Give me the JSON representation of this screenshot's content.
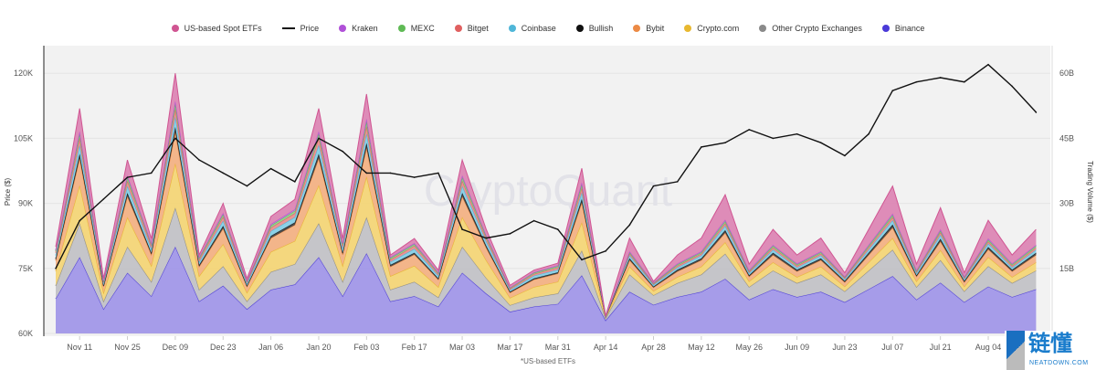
{
  "chart_data": {
    "type": "area",
    "stacked": true,
    "secondary_line": "Price",
    "legend_position": "top",
    "grid": true,
    "watermark": "CryptoQuant",
    "ylabel_left": "Price ($)",
    "ylabel_right": "Trading Volume ($)",
    "footnote": "*US-based ETFs",
    "ylim_left": [
      60000,
      127000
    ],
    "ylim_right": [
      0,
      67000000000
    ],
    "yticks_left": [
      {
        "v": 60000,
        "label": "60K"
      },
      {
        "v": 75000,
        "label": "75K"
      },
      {
        "v": 90000,
        "label": "90K"
      },
      {
        "v": 105000,
        "label": "105K"
      },
      {
        "v": 120000,
        "label": "120K"
      }
    ],
    "yticks_right": [
      {
        "v": 15000000000,
        "label": "15B"
      },
      {
        "v": 30000000000,
        "label": "30B"
      },
      {
        "v": 45000000000,
        "label": "45B"
      },
      {
        "v": 60000000000,
        "label": "60B"
      }
    ],
    "xticks": [
      {
        "date": "2024-11-11",
        "label": "Nov 11"
      },
      {
        "date": "2024-11-25",
        "label": "Nov 25"
      },
      {
        "date": "2024-12-09",
        "label": "Dec 09"
      },
      {
        "date": "2024-12-23",
        "label": "Dec 23"
      },
      {
        "date": "2025-01-06",
        "label": "Jan 06"
      },
      {
        "date": "2025-01-20",
        "label": "Jan 20"
      },
      {
        "date": "2025-02-03",
        "label": "Feb 03"
      },
      {
        "date": "2025-02-17",
        "label": "Feb 17"
      },
      {
        "date": "2025-03-03",
        "label": "Mar 03"
      },
      {
        "date": "2025-03-17",
        "label": "Mar 17"
      },
      {
        "date": "2025-03-31",
        "label": "Mar 31"
      },
      {
        "date": "2025-04-14",
        "label": "Apr 14"
      },
      {
        "date": "2025-04-28",
        "label": "Apr 28"
      },
      {
        "date": "2025-05-12",
        "label": "May 12"
      },
      {
        "date": "2025-05-26",
        "label": "May 26"
      },
      {
        "date": "2025-06-09",
        "label": "Jun 09"
      },
      {
        "date": "2025-06-23",
        "label": "Jun 23"
      },
      {
        "date": "2025-07-07",
        "label": "Jul 07"
      },
      {
        "date": "2025-07-21",
        "label": "Jul 21"
      },
      {
        "date": "2025-08-04",
        "label": "Aug 04"
      }
    ],
    "x": [
      "2024-11-04",
      "2024-11-11",
      "2024-11-18",
      "2024-11-25",
      "2024-12-02",
      "2024-12-09",
      "2024-12-16",
      "2024-12-23",
      "2024-12-30",
      "2025-01-06",
      "2025-01-13",
      "2025-01-20",
      "2025-01-27",
      "2025-02-03",
      "2025-02-10",
      "2025-02-17",
      "2025-02-24",
      "2025-03-03",
      "2025-03-10",
      "2025-03-17",
      "2025-03-24",
      "2025-03-31",
      "2025-04-07",
      "2025-04-14",
      "2025-04-21",
      "2025-04-28",
      "2025-05-05",
      "2025-05-12",
      "2025-05-19",
      "2025-05-26",
      "2025-06-02",
      "2025-06-09",
      "2025-06-16",
      "2025-06-23",
      "2025-06-30",
      "2025-07-07",
      "2025-07-14",
      "2025-07-21",
      "2025-07-28",
      "2025-08-04",
      "2025-08-11",
      "2025-08-18"
    ],
    "price": {
      "name": "Price",
      "unit": "USD",
      "color": "#111111",
      "values": [
        75000,
        86000,
        91000,
        96000,
        97000,
        105000,
        100000,
        97000,
        94000,
        98000,
        95000,
        105000,
        102000,
        97000,
        97000,
        96000,
        97000,
        84000,
        82000,
        83000,
        86000,
        84000,
        77000,
        79000,
        85000,
        94000,
        95000,
        103000,
        104000,
        107000,
        105000,
        106000,
        104000,
        101000,
        106000,
        116000,
        118000,
        119000,
        118000,
        122000,
        117000,
        111000
      ]
    },
    "volume_unit": "billion USD",
    "series": [
      {
        "name": "Binance",
        "color": "#4a3ad8",
        "fill": "#a197e8",
        "values": [
          8,
          17.6,
          5.6,
          14,
          8.6,
          20,
          7.4,
          11,
          5.6,
          10.1,
          11.3,
          17.6,
          8.6,
          18.5,
          7.4,
          8.6,
          6.2,
          14,
          9.2,
          5,
          6.2,
          6.8,
          13.4,
          3.0,
          9.6,
          6.6,
          8.4,
          9.6,
          12.6,
          7.8,
          10.2,
          8.4,
          9.6,
          7.2,
          10.2,
          13.2,
          7.8,
          11.7,
          7.2,
          10.8,
          8.4,
          10.2
        ]
      },
      {
        "name": "Other Crypto Exchanges",
        "color": "#8a8a8a",
        "fill": "#c2c2c6",
        "values": [
          3,
          7.8,
          1.8,
          6,
          3.3,
          9,
          2.7,
          4.5,
          1.8,
          4.1,
          4.7,
          7.8,
          3.3,
          8.3,
          2.7,
          3.3,
          2.1,
          6,
          3.6,
          1.5,
          2.1,
          2.4,
          5.7,
          0.5,
          4,
          2.2,
          3.2,
          4,
          5.8,
          2.9,
          4.3,
          3.2,
          4,
          2.5,
          4.3,
          6.1,
          2.9,
          5.2,
          2.5,
          4.7,
          3.2,
          4.3
        ]
      },
      {
        "name": "Crypto.com",
        "color": "#e8b830",
        "fill": "#f3d577",
        "values": [
          3.4,
          8.8,
          2,
          6.8,
          3.7,
          10.2,
          3.1,
          5.1,
          2,
          4.6,
          5.3,
          8.8,
          3.7,
          9.4,
          3.1,
          3.7,
          2.4,
          6.8,
          4.1,
          1.7,
          2.4,
          2.7,
          6.5,
          0.2,
          1.8,
          1,
          1.4,
          1.8,
          2.6,
          1.3,
          1.9,
          1.4,
          1.8,
          1.1,
          1.9,
          2.7,
          1.3,
          2.3,
          1.1,
          2.1,
          1.4,
          1.9
        ]
      },
      {
        "name": "Bybit",
        "color": "#ec8a45",
        "fill": "#f2b184",
        "values": [
          2.4,
          6.2,
          1.4,
          4.8,
          2.6,
          7.2,
          2.2,
          3.6,
          1.4,
          3.2,
          3.7,
          6.2,
          2.6,
          6.6,
          2.2,
          2.6,
          1.7,
          4.8,
          2.9,
          1.2,
          1.7,
          1.9,
          4.6,
          0.1,
          1.5,
          0.8,
          1.3,
          1.5,
          2.2,
          1.1,
          1.7,
          1.3,
          1.5,
          1,
          1.7,
          2.4,
          1.1,
          2,
          1,
          1.8,
          1.3,
          1.7
        ]
      },
      {
        "name": "Bullish",
        "color": "#111111",
        "fill": "#444444",
        "values": [
          0.4,
          1,
          0.2,
          0.8,
          0.4,
          1.2,
          0.4,
          0.6,
          0.2,
          0.5,
          0.6,
          1,
          0.4,
          1.1,
          0.4,
          0.4,
          0.3,
          0.8,
          0.5,
          0.2,
          0.3,
          0.3,
          0.8,
          0.05,
          0.4,
          0.2,
          0.4,
          0.4,
          0.6,
          0.3,
          0.5,
          0.4,
          0.4,
          0.3,
          0.5,
          0.7,
          0.3,
          0.6,
          0.3,
          0.5,
          0.4,
          0.5
        ]
      },
      {
        "name": "Coinbase",
        "color": "#4fb6d8",
        "fill": "#86cfe6",
        "values": [
          0.8,
          2.1,
          0.5,
          1.6,
          0.9,
          2.4,
          0.7,
          1.2,
          0.5,
          1.1,
          1.2,
          2.1,
          0.9,
          2.2,
          0.7,
          0.9,
          0.6,
          1.6,
          1,
          0.4,
          0.6,
          0.6,
          1.5,
          0.05,
          0.7,
          0.4,
          0.5,
          0.7,
          1,
          0.5,
          0.7,
          0.5,
          0.7,
          0.4,
          0.7,
          1,
          0.5,
          0.9,
          0.4,
          0.8,
          0.5,
          0.7
        ]
      },
      {
        "name": "Bitget",
        "color": "#e06060",
        "fill": "#e99090",
        "values": [
          0.6,
          1.6,
          0.4,
          1.2,
          0.7,
          1.8,
          0.5,
          0.9,
          0.4,
          0.8,
          0.9,
          1.6,
          0.7,
          1.7,
          0.5,
          0.7,
          0.4,
          1.2,
          0.7,
          0.3,
          0.4,
          0.5,
          1.1,
          0.05,
          0.4,
          0.2,
          0.4,
          0.4,
          0.6,
          0.3,
          0.5,
          0.4,
          0.4,
          0.3,
          0.5,
          0.7,
          0.3,
          0.6,
          0.3,
          0.5,
          0.4,
          0.5
        ]
      },
      {
        "name": "MEXC",
        "color": "#5fba55",
        "fill": "#92d08a",
        "values": [
          0.4,
          1,
          0.2,
          0.8,
          0.4,
          1.2,
          0.4,
          0.6,
          0.2,
          0.5,
          0.6,
          1,
          0.4,
          1.1,
          0.4,
          0.4,
          0.3,
          0.8,
          0.5,
          0.2,
          0.3,
          0.3,
          0.8,
          0.02,
          0.3,
          0.2,
          0.3,
          0.3,
          0.5,
          0.2,
          0.4,
          0.3,
          0.3,
          0.2,
          0.4,
          0.5,
          0.2,
          0.4,
          0.2,
          0.4,
          0.3,
          0.4
        ]
      },
      {
        "name": "Kraken",
        "color": "#b050d8",
        "fill": "#c888e4",
        "values": [
          0.2,
          0.5,
          0.1,
          0.4,
          0.2,
          0.6,
          0.2,
          0.3,
          0.1,
          0.3,
          0.3,
          0.5,
          0.2,
          0.6,
          0.2,
          0.2,
          0.1,
          0.4,
          0.2,
          0.1,
          0.1,
          0.2,
          0.4,
          0.02,
          0.2,
          0.1,
          0.2,
          0.2,
          0.3,
          0.2,
          0.2,
          0.2,
          0.2,
          0.1,
          0.2,
          0.3,
          0.2,
          0.3,
          0.1,
          0.3,
          0.2,
          0.2
        ]
      },
      {
        "name": "US-based Spot ETFs",
        "color": "#d05592",
        "fill": "#dc86b4",
        "values": [
          0.8,
          5.3,
          0.5,
          3.6,
          1.1,
          6.4,
          0.5,
          2.2,
          0.5,
          1.8,
          2.3,
          5.3,
          1.1,
          5.7,
          0.5,
          1.1,
          0.5,
          3.6,
          1.4,
          0.5,
          0.5,
          0.5,
          3.3,
          0.1,
          3.1,
          0.3,
          2,
          3.1,
          5.8,
          1.4,
          3.6,
          2,
          3.1,
          0.9,
          3.6,
          6.4,
          1.4,
          5,
          0.9,
          4.2,
          2,
          3.6
        ]
      }
    ],
    "legend_order": [
      "US-based Spot ETFs",
      "Price",
      "Kraken",
      "MEXC",
      "Bitget",
      "Coinbase",
      "Bullish",
      "Bybit",
      "Crypto.com",
      "Other Crypto Exchanges",
      "Binance"
    ]
  },
  "logo": {
    "text_cn": "链懂",
    "text_en": "NEATDOWN.COM"
  }
}
